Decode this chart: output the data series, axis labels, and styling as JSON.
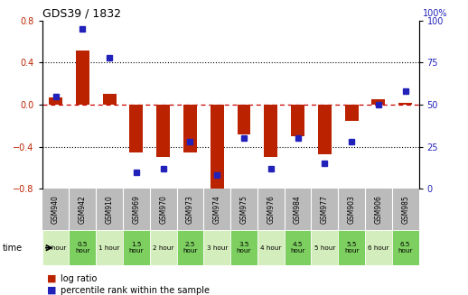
{
  "title": "GDS39 / 1832",
  "samples": [
    "GSM940",
    "GSM942",
    "GSM910",
    "GSM969",
    "GSM970",
    "GSM973",
    "GSM974",
    "GSM975",
    "GSM976",
    "GSM984",
    "GSM977",
    "GSM903",
    "GSM906",
    "GSM985"
  ],
  "time_labels": [
    "0 hour",
    "0.5\nhour",
    "1 hour",
    "1.5\nhour",
    "2 hour",
    "2.5\nhour",
    "3 hour",
    "3.5\nhour",
    "4 hour",
    "4.5\nhour",
    "5 hour",
    "5.5\nhour",
    "6 hour",
    "6.5\nhour"
  ],
  "time_colors": [
    "#d4edbc",
    "#7dcf60",
    "#d4edbc",
    "#7dcf60",
    "#d4edbc",
    "#7dcf60",
    "#d4edbc",
    "#7dcf60",
    "#d4edbc",
    "#7dcf60",
    "#d4edbc",
    "#7dcf60",
    "#d4edbc",
    "#7dcf60"
  ],
  "log_ratio": [
    0.07,
    0.52,
    0.1,
    -0.45,
    -0.5,
    -0.45,
    -0.82,
    -0.28,
    -0.5,
    -0.3,
    -0.47,
    -0.15,
    0.05,
    0.02
  ],
  "percentile": [
    55,
    95,
    78,
    10,
    12,
    28,
    8,
    30,
    12,
    30,
    15,
    28,
    50,
    58
  ],
  "bar_color": "#bb2200",
  "dot_color": "#2222bb",
  "ylim_left": [
    -0.8,
    0.8
  ],
  "ylim_right": [
    0,
    100
  ],
  "yticks_left": [
    -0.8,
    -0.4,
    0.0,
    0.4,
    0.8
  ],
  "yticks_right": [
    0,
    25,
    50,
    75,
    100
  ],
  "background_color": "#ffffff",
  "sample_row_color": "#bbbbbb",
  "zero_line_color": "#cc0000",
  "dot_line_color": "#0000aa",
  "right_axis_label": "100%"
}
